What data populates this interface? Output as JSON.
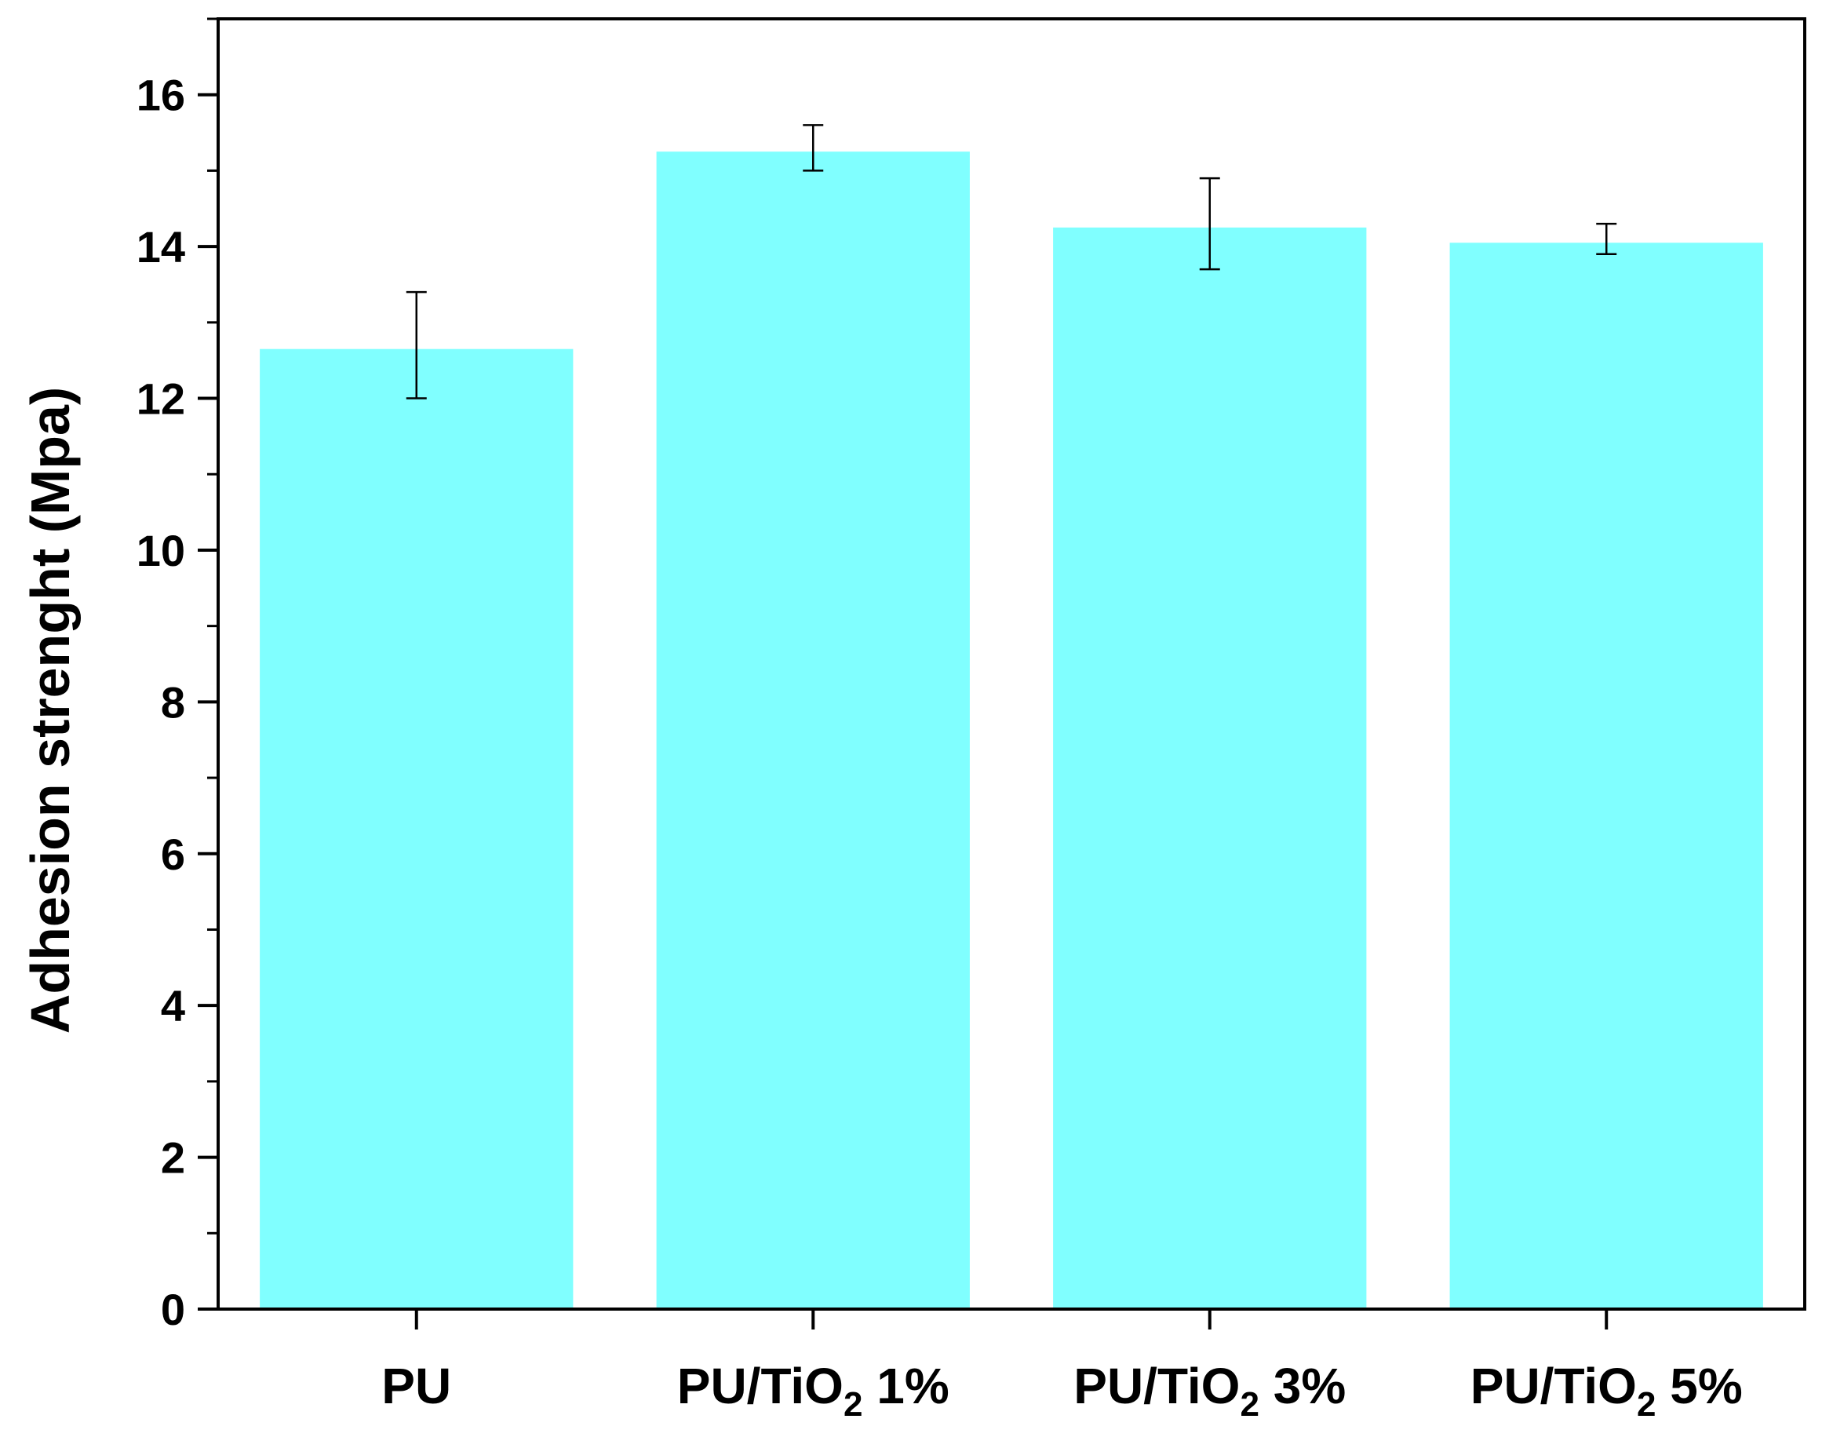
{
  "chart_data": {
    "type": "bar",
    "categories": [
      {
        "label": "PU",
        "base": "PU",
        "sub": "",
        "suffix": ""
      },
      {
        "label": "PU/TiO2 1%",
        "base": "PU/TiO",
        "sub": "2",
        "suffix": " 1%"
      },
      {
        "label": "PU/TiO2 3%",
        "base": "PU/TiO",
        "sub": "2",
        "suffix": " 3%"
      },
      {
        "label": "PU/TiO2 5%",
        "base": "PU/TiO",
        "sub": "2",
        "suffix": " 5%"
      }
    ],
    "values": [
      12.65,
      15.25,
      14.25,
      14.05
    ],
    "errors": [
      {
        "low": 12.0,
        "high": 13.4
      },
      {
        "low": 15.0,
        "high": 15.6
      },
      {
        "low": 13.7,
        "high": 14.9
      },
      {
        "low": 13.9,
        "high": 14.3
      }
    ],
    "title": "",
    "xlabel": "",
    "ylabel": "Adhesion strenght (Mpa)",
    "ylim": [
      0,
      17
    ],
    "yticks": [
      0,
      2,
      4,
      6,
      8,
      10,
      12,
      14,
      16
    ],
    "grid": false,
    "legend": false,
    "bar_color": "#80ffff",
    "axis_color": "#000000"
  }
}
